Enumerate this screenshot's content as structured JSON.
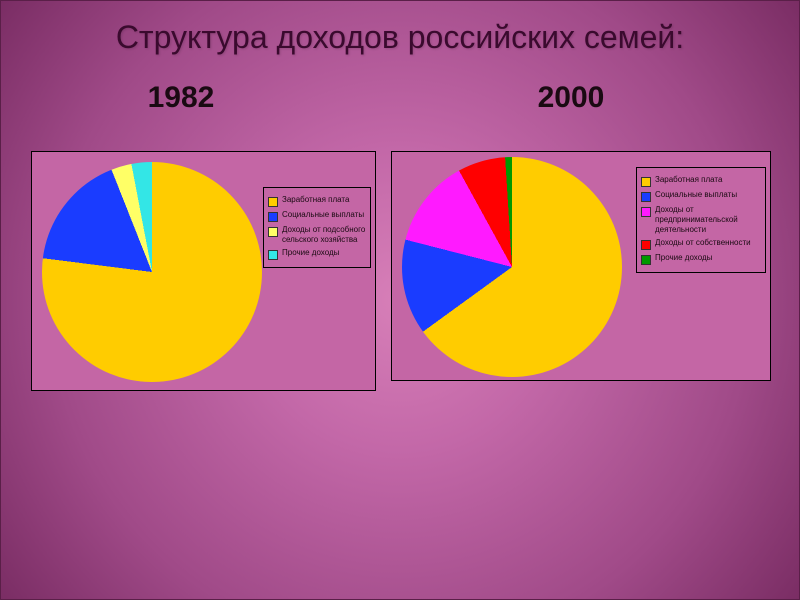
{
  "title": "Структура доходов российских семей:",
  "background": {
    "gradient_center": "#d77fb8",
    "gradient_mid": "#a04a88",
    "gradient_edge": "#7a2d64"
  },
  "chart_1982": {
    "type": "pie",
    "year_label": "1982",
    "year_fontsize": 30,
    "plot_bg": "#c466a5",
    "border_color": "#000000",
    "slices": [
      {
        "label": "Заработная плата",
        "value": 77,
        "color": "#ffcc00"
      },
      {
        "label": "Социальные выплаты",
        "value": 17,
        "color": "#1a3cff"
      },
      {
        "label": "Доходы от подсобного сельского хозяйства",
        "value": 3,
        "color": "#ffff66"
      },
      {
        "label": "Прочие доходы",
        "value": 3,
        "color": "#33e6e6"
      }
    ],
    "start_angle_deg": 270,
    "direction": "clockwise",
    "legend_position": "right",
    "legend_fontsize": 8
  },
  "chart_2000": {
    "type": "pie",
    "year_label": "2000",
    "year_fontsize": 30,
    "plot_bg": "#c466a5",
    "border_color": "#000000",
    "slices": [
      {
        "label": "Заработная плата",
        "value": 65,
        "color": "#ffcc00"
      },
      {
        "label": "Социальные выплаты",
        "value": 14,
        "color": "#1a3cff"
      },
      {
        "label": "Доходы от предпринимательской деятельности",
        "value": 13,
        "color": "#ff1aff"
      },
      {
        "label": "Доходы от собственности",
        "value": 7,
        "color": "#ff0000"
      },
      {
        "label": "Прочие доходы",
        "value": 1,
        "color": "#009900"
      }
    ],
    "start_angle_deg": 270,
    "direction": "clockwise",
    "legend_position": "right",
    "legend_fontsize": 8
  }
}
